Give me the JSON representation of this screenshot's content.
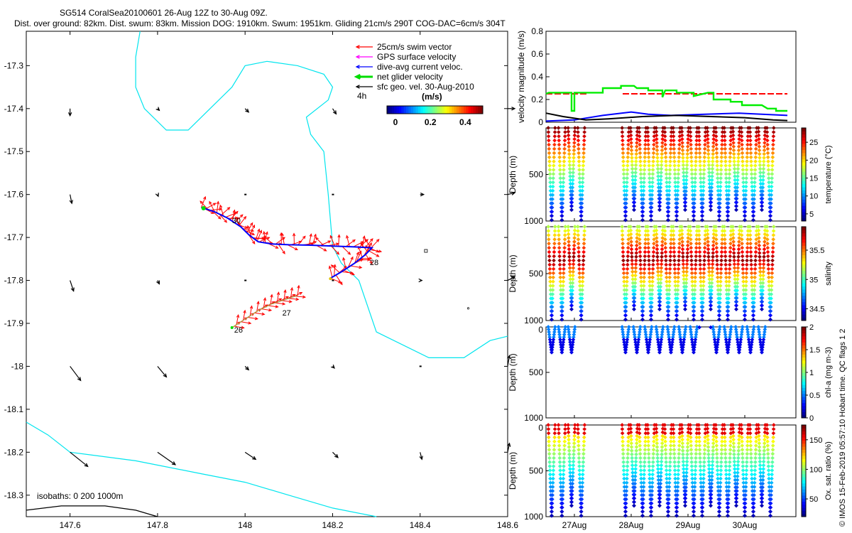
{
  "title": {
    "line1": "SG514 CoralSea20100601 26-Aug 12Z to 30-Aug 09Z.",
    "line2": "Dist. over ground: 82km. Dist. swum: 83km. Mission DOG: 1910km. Swum: 1951km. Gliding 21cm/s 290T COG-DAC=6cm/s 304T"
  },
  "map": {
    "xticks": [
      "147.6",
      "147.8",
      "148",
      "148.2",
      "148.4",
      "148.6"
    ],
    "xtick_values": [
      147.6,
      147.8,
      148.0,
      148.2,
      148.4,
      148.6
    ],
    "yticks": [
      "-17.3",
      "-17.4",
      "-17.5",
      "-17.6",
      "-17.7",
      "-17.8",
      "-17.9",
      "-18",
      "-18.1",
      "-18.2",
      "-18.3"
    ],
    "ytick_values": [
      -17.3,
      -17.4,
      -17.5,
      -17.6,
      -17.7,
      -17.8,
      -17.9,
      -18.0,
      -18.1,
      -18.2,
      -18.3
    ],
    "xlim": [
      147.5,
      148.6
    ],
    "ylim": [
      -18.35,
      -17.22
    ],
    "legend": {
      "items": [
        {
          "label": "25cm/s swim vector",
          "color": "#ff0000"
        },
        {
          "label": "GPS surface velocity",
          "color": "#ff00ff"
        },
        {
          "label": "dive-avg current veloc.",
          "color": "#0000ff"
        },
        {
          "label": "net glider velocity",
          "color": "#00dd00"
        },
        {
          "label": "sfc geo. vel. 30-Aug-2010",
          "color": "#000000"
        }
      ],
      "four_h": "4h",
      "colorbar_label": "(m/s)",
      "colorbar_ticks": [
        "0",
        "0.2",
        "0.4"
      ]
    },
    "isobaths_label": "isobaths: 0   200   1000m",
    "day_labels": [
      {
        "text": "26",
        "lon": 147.975,
        "lat": -17.915
      },
      {
        "text": "27",
        "lon": 148.085,
        "lat": -17.875
      },
      {
        "text": "28",
        "lon": 148.285,
        "lat": -17.758
      },
      {
        "text": "30",
        "lon": 147.97,
        "lat": -17.66
      }
    ],
    "track": [
      [
        147.9,
        -17.63
      ],
      [
        147.93,
        -17.64
      ],
      [
        147.96,
        -17.655
      ],
      [
        147.99,
        -17.675
      ],
      [
        148.01,
        -17.695
      ],
      [
        148.03,
        -17.71
      ],
      [
        148.06,
        -17.715
      ],
      [
        148.1,
        -17.717
      ],
      [
        148.15,
        -17.718
      ],
      [
        148.2,
        -17.72
      ],
      [
        148.25,
        -17.722
      ],
      [
        148.29,
        -17.724
      ],
      [
        148.275,
        -17.74
      ],
      [
        148.25,
        -17.76
      ],
      [
        148.22,
        -17.78
      ],
      [
        148.195,
        -17.795
      ]
    ],
    "track2": [
      [
        147.97,
        -17.91
      ],
      [
        148.0,
        -17.89
      ],
      [
        148.03,
        -17.87
      ],
      [
        148.06,
        -17.855
      ],
      [
        148.09,
        -17.845
      ],
      [
        148.12,
        -17.835
      ]
    ],
    "coast_cyan_1": [
      [
        147.76,
        -17.22
      ],
      [
        147.75,
        -17.28
      ],
      [
        147.75,
        -17.35
      ],
      [
        147.77,
        -17.4
      ],
      [
        147.82,
        -17.45
      ],
      [
        147.87,
        -17.45
      ],
      [
        147.92,
        -17.4
      ],
      [
        147.97,
        -17.35
      ],
      [
        148.0,
        -17.3
      ],
      [
        148.05,
        -17.29
      ],
      [
        148.12,
        -17.3
      ],
      [
        148.18,
        -17.32
      ],
      [
        148.2,
        -17.35
      ],
      [
        148.19,
        -17.38
      ],
      [
        148.14,
        -17.42
      ],
      [
        148.15,
        -17.46
      ],
      [
        148.18,
        -17.5
      ],
      [
        148.19,
        -17.6
      ],
      [
        148.2,
        -17.72
      ],
      [
        148.22,
        -17.76
      ],
      [
        148.26,
        -17.8
      ],
      [
        148.3,
        -17.92
      ],
      [
        148.42,
        -17.98
      ],
      [
        148.5,
        -17.98
      ],
      [
        148.56,
        -17.94
      ],
      [
        148.6,
        -17.93
      ]
    ],
    "coast_cyan_2": [
      [
        147.5,
        -18.13
      ],
      [
        147.55,
        -18.16
      ],
      [
        147.6,
        -18.2
      ],
      [
        147.75,
        -18.22
      ],
      [
        147.9,
        -18.25
      ],
      [
        148.0,
        -18.27
      ],
      [
        148.1,
        -18.3
      ],
      [
        148.2,
        -18.33
      ],
      [
        148.3,
        -18.35
      ]
    ],
    "coast_black": [
      [
        147.5,
        -18.335
      ],
      [
        147.58,
        -18.325
      ],
      [
        147.68,
        -18.325
      ],
      [
        147.75,
        -18.335
      ],
      [
        147.8,
        -18.35
      ]
    ],
    "sfc_vectors": [
      [
        147.6,
        -17.4,
        0.0,
        -0.02
      ],
      [
        147.8,
        -17.4,
        0.005,
        -0.005
      ],
      [
        148.0,
        -17.4,
        0.01,
        -0.01
      ],
      [
        148.2,
        -17.4,
        0.01,
        -0.015
      ],
      [
        148.4,
        -17.4,
        0.0,
        0.0
      ],
      [
        148.6,
        -17.4,
        0.02,
        0.0
      ],
      [
        147.6,
        -17.6,
        0.005,
        -0.025
      ],
      [
        147.8,
        -17.6,
        0.002,
        -0.005
      ],
      [
        148.0,
        -17.6,
        0.0,
        0.0
      ],
      [
        148.2,
        -17.6,
        0.0,
        0.0
      ],
      [
        148.4,
        -17.6,
        0.01,
        0.0
      ],
      [
        148.6,
        -17.6,
        0.02,
        0.005
      ],
      [
        147.6,
        -17.8,
        0.01,
        -0.03
      ],
      [
        147.8,
        -17.8,
        0.005,
        -0.01
      ],
      [
        148.0,
        -17.8,
        0.0,
        0.0
      ],
      [
        148.2,
        -17.8,
        0.0,
        0.0
      ],
      [
        148.4,
        -17.8,
        0.005,
        0.0
      ],
      [
        148.6,
        -17.8,
        0.02,
        0.01
      ],
      [
        147.6,
        -18.0,
        0.03,
        -0.04
      ],
      [
        147.8,
        -18.0,
        0.025,
        -0.03
      ],
      [
        148.0,
        -18.0,
        0.01,
        -0.01
      ],
      [
        148.2,
        -18.0,
        0.005,
        -0.005
      ],
      [
        148.4,
        -18.0,
        0.0,
        0.0
      ],
      [
        148.6,
        -18.0,
        0.005,
        0.03
      ],
      [
        147.6,
        -18.2,
        0.05,
        -0.04
      ],
      [
        147.8,
        -18.2,
        0.05,
        -0.035
      ],
      [
        148.0,
        -18.2,
        0.03,
        -0.02
      ],
      [
        148.2,
        -18.2,
        0.015,
        -0.015
      ],
      [
        148.4,
        -18.2,
        0.005,
        -0.02
      ],
      [
        148.6,
        -18.2,
        0.005,
        0.025
      ]
    ]
  },
  "velocity_panel": {
    "ylabel": "velocity magnitude (m/s)",
    "yticks": [
      "0",
      "0.2",
      "0.4",
      "0.6",
      "0.8"
    ],
    "ytick_values": [
      0,
      0.2,
      0.4,
      0.6,
      0.8
    ],
    "ylim": [
      0,
      0.8
    ],
    "xlim": [
      26.5,
      30.9
    ],
    "swim_red": [
      [
        26.5,
        0.25
      ],
      [
        27.25,
        0.25
      ],
      null,
      [
        27.85,
        0.25
      ],
      [
        30.75,
        0.25
      ]
    ],
    "net_green": [
      [
        26.5,
        0.25
      ],
      [
        26.55,
        0.26
      ],
      [
        26.95,
        0.26
      ],
      [
        26.95,
        0.1
      ],
      [
        27.0,
        0.1
      ],
      [
        27.0,
        0.26
      ],
      [
        27.5,
        0.26
      ],
      [
        27.5,
        0.3
      ],
      [
        27.82,
        0.3
      ],
      [
        27.82,
        0.32
      ],
      [
        28.05,
        0.32
      ],
      [
        28.1,
        0.3
      ],
      [
        28.3,
        0.3
      ],
      [
        28.3,
        0.28
      ],
      [
        28.55,
        0.28
      ],
      [
        28.55,
        0.22
      ],
      [
        28.6,
        0.28
      ],
      [
        28.8,
        0.28
      ],
      [
        28.8,
        0.26
      ],
      [
        29.1,
        0.26
      ],
      [
        29.1,
        0.23
      ],
      [
        29.35,
        0.26
      ],
      [
        29.45,
        0.26
      ],
      [
        29.45,
        0.2
      ],
      [
        29.75,
        0.2
      ],
      [
        29.75,
        0.18
      ],
      [
        29.95,
        0.18
      ],
      [
        29.95,
        0.15
      ],
      [
        30.3,
        0.15
      ],
      [
        30.4,
        0.12
      ],
      [
        30.55,
        0.12
      ],
      [
        30.55,
        0.1
      ],
      [
        30.75,
        0.1
      ]
    ],
    "dive_blue": [
      [
        26.5,
        0.01
      ],
      [
        27.0,
        0.02
      ],
      [
        27.5,
        0.06
      ],
      [
        28.0,
        0.09
      ],
      [
        28.3,
        0.07
      ],
      [
        28.7,
        0.06
      ],
      [
        29.3,
        0.07
      ],
      [
        29.9,
        0.08
      ],
      [
        30.3,
        0.07
      ],
      [
        30.75,
        0.06
      ]
    ],
    "sfc_black": [
      [
        26.5,
        0.08
      ],
      [
        26.8,
        0.05
      ],
      [
        27.2,
        0.02
      ],
      [
        27.6,
        0.03
      ],
      [
        28.2,
        0.05
      ],
      [
        28.8,
        0.06
      ],
      [
        29.4,
        0.05
      ],
      [
        30.0,
        0.04
      ],
      [
        30.5,
        0.02
      ],
      [
        30.75,
        0.015
      ]
    ]
  },
  "depth_panels": {
    "xticks": [
      "27Aug",
      "28Aug",
      "29Aug",
      "30Aug"
    ],
    "xtick_values": [
      27.0,
      28.0,
      29.0,
      30.0
    ],
    "xlim": [
      26.5,
      30.9
    ],
    "ylim": [
      0,
      1000
    ],
    "ylabel": "Depth (m)",
    "yticks": [
      "500",
      "1000"
    ],
    "ytick_values": [
      500,
      1000
    ],
    "panels": [
      {
        "name": "temperature",
        "colorbar_label": "temperature (°C)",
        "ticks": [
          "5",
          "10",
          "15",
          "20",
          "25"
        ],
        "tick_values": [
          5,
          10,
          15,
          20,
          25
        ],
        "range": [
          3,
          29
        ],
        "surface_ticks": false
      },
      {
        "name": "salinity",
        "colorbar_label": "salinity",
        "ticks": [
          "34.5",
          "35",
          "35.5"
        ],
        "tick_values": [
          34.5,
          35,
          35.5
        ],
        "range": [
          34.3,
          35.9
        ],
        "surface_ticks": false
      },
      {
        "name": "chl",
        "colorbar_label": "chl-a (mg m-3)",
        "ticks": [
          "0",
          "0.5",
          "1",
          "1.5",
          "2"
        ],
        "tick_values": [
          0,
          0.5,
          1,
          1.5,
          2
        ],
        "range": [
          0,
          2
        ],
        "surface_ticks": true
      },
      {
        "name": "oxygen",
        "colorbar_label": "Ox. sat. ratio (%)",
        "ticks": [
          "50",
          "100",
          "150"
        ],
        "tick_values": [
          50,
          100,
          150
        ],
        "range": [
          20,
          175
        ],
        "surface_ticks": true
      }
    ],
    "dives_full": [
      26.6,
      26.78,
      26.95,
      27.12,
      27.9,
      28.05,
      28.2,
      28.35,
      28.5,
      28.65,
      28.8,
      28.95,
      29.1,
      29.25,
      29.4,
      29.55,
      29.7,
      29.85,
      30.0,
      30.15,
      30.3,
      30.45
    ],
    "dives_chl": [
      26.6,
      26.78,
      26.95,
      27.9,
      28.1,
      28.3,
      28.5,
      28.7,
      28.9,
      29.1,
      29.5,
      29.7,
      29.9,
      30.1,
      30.3
    ],
    "chl_surface_points": [
      29.2,
      29.4
    ]
  },
  "side_text": "© IMOS 15-Feb-2019 05:57:10 Hobart time. QC flags 1  2"
}
